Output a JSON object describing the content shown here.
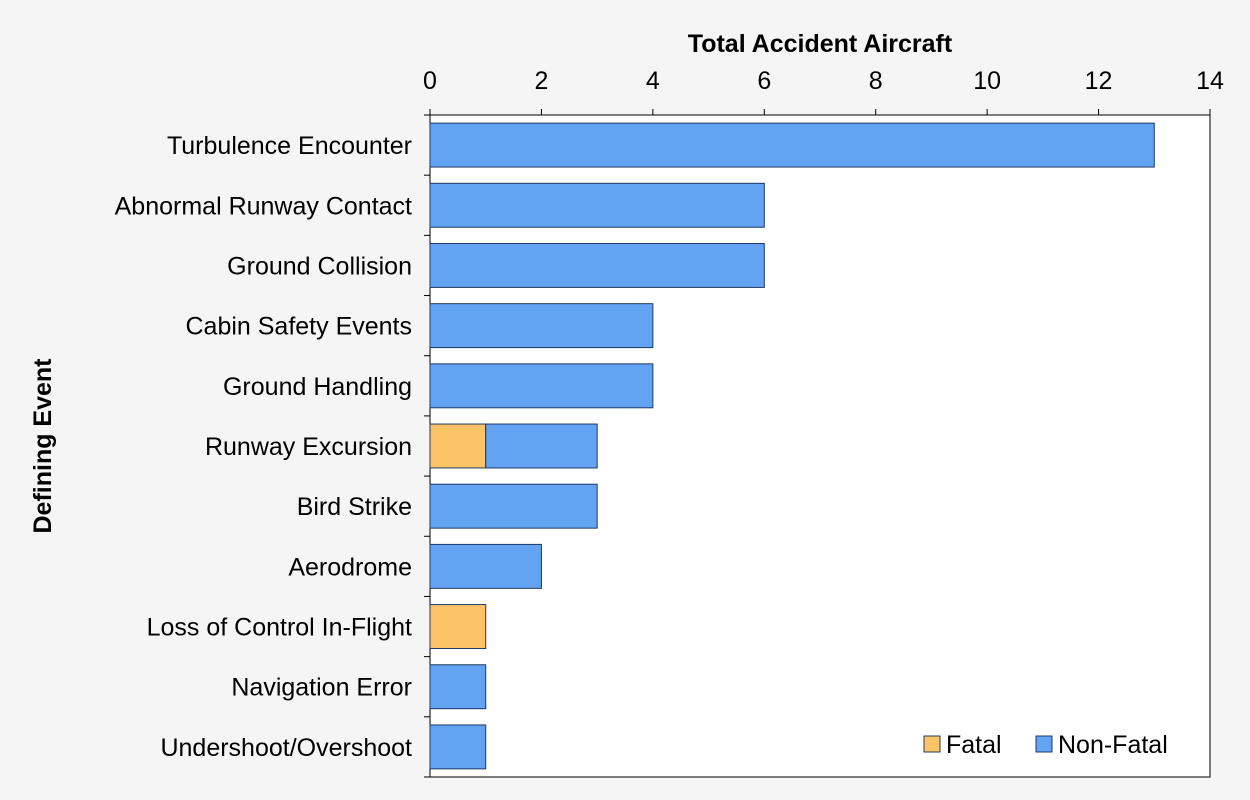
{
  "chart_data": {
    "type": "bar",
    "orientation": "horizontal",
    "stacked": true,
    "xlabel": "Total Accident Aircraft",
    "ylabel": "Defining Event",
    "xlim": [
      0,
      14
    ],
    "x_ticks": [
      0,
      2,
      4,
      6,
      8,
      10,
      12,
      14
    ],
    "x_axis_position": "top",
    "grid": false,
    "legend_position": "bottom-right",
    "categories": [
      "Turbulence Encounter",
      "Abnormal Runway Contact",
      "Ground Collision",
      "Cabin Safety Events",
      "Ground Handling",
      "Runway Excursion",
      "Bird Strike",
      "Aerodrome",
      "Loss of Control In-Flight",
      "Navigation Error",
      "Undershoot/Overshoot"
    ],
    "series": [
      {
        "name": "Fatal",
        "color": "#fcc466",
        "values": [
          0,
          0,
          0,
          0,
          0,
          1,
          0,
          0,
          1,
          0,
          0
        ]
      },
      {
        "name": "Non-Fatal",
        "color": "#63a3f4",
        "values": [
          13,
          6,
          6,
          4,
          4,
          2,
          3,
          2,
          0,
          1,
          1
        ]
      }
    ]
  }
}
